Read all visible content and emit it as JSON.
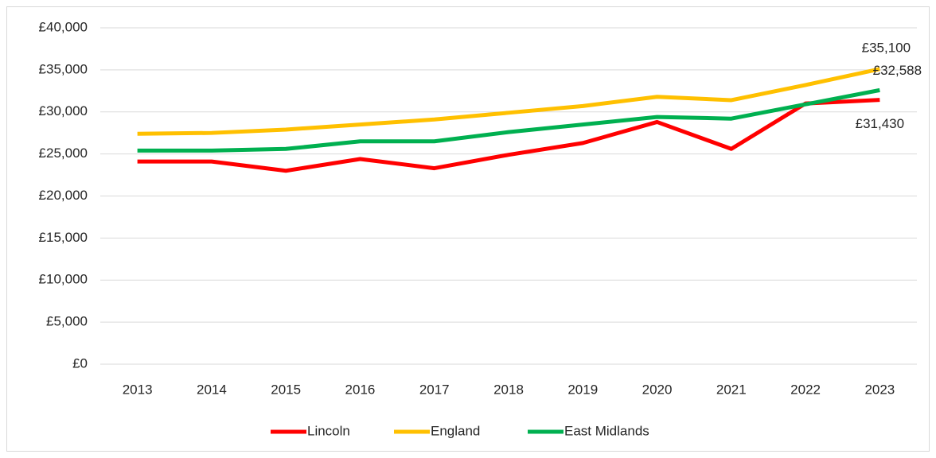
{
  "chart_data": {
    "type": "line",
    "categories": [
      "2013",
      "2014",
      "2015",
      "2016",
      "2017",
      "2018",
      "2019",
      "2020",
      "2021",
      "2022",
      "2023"
    ],
    "series": [
      {
        "name": "Lincoln",
        "color": "#ff0000",
        "values": [
          24100,
          24100,
          23000,
          24400,
          23300,
          24900,
          26300,
          28800,
          25600,
          31000,
          31430
        ],
        "value_labels": [
          null,
          null,
          null,
          null,
          null,
          null,
          null,
          null,
          null,
          null,
          "£31,430"
        ]
      },
      {
        "name": "England",
        "color": "#ffc000",
        "values": [
          27400,
          27500,
          27900,
          28500,
          29100,
          29900,
          30700,
          31800,
          31400,
          33200,
          35100
        ],
        "value_labels": [
          null,
          null,
          null,
          null,
          null,
          null,
          null,
          null,
          null,
          null,
          "£35,100"
        ]
      },
      {
        "name": "East Midlands",
        "color": "#00b050",
        "values": [
          25400,
          25400,
          25600,
          26500,
          26500,
          27600,
          28500,
          29400,
          29200,
          30900,
          32588
        ],
        "value_labels": [
          null,
          null,
          null,
          null,
          null,
          null,
          null,
          null,
          null,
          null,
          "£32,588"
        ]
      }
    ],
    "ylim": [
      0,
      40000
    ],
    "yticks": [
      {
        "value": 0,
        "label": "£0"
      },
      {
        "value": 5000,
        "label": "£5,000"
      },
      {
        "value": 10000,
        "label": "£10,000"
      },
      {
        "value": 15000,
        "label": "£15,000"
      },
      {
        "value": 20000,
        "label": "£20,000"
      },
      {
        "value": 25000,
        "label": "£25,000"
      },
      {
        "value": 30000,
        "label": "£30,000"
      },
      {
        "value": 35000,
        "label": "£35,000"
      },
      {
        "value": 40000,
        "label": "£40,000"
      }
    ],
    "grid": true,
    "legend": "bottom"
  }
}
